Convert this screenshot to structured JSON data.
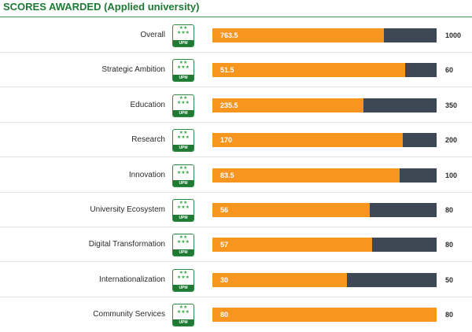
{
  "header": {
    "title": "SCORES AWARDED (Applied university)"
  },
  "badge": {
    "stars": "★★\n★★★",
    "brand": "UPM"
  },
  "colors": {
    "accent": "#f7961f",
    "track": "#3e4754",
    "brand": "#1f7a34"
  },
  "chart_data": {
    "type": "bar",
    "orientation": "horizontal",
    "title": "SCORES AWARDED (Applied university)",
    "categories": [
      "Overall",
      "Strategic Ambition",
      "Education",
      "Research",
      "Innovation",
      "University Ecosystem",
      "Digital Transformation",
      "Internationalization",
      "Community Services"
    ],
    "values": [
      763.5,
      51.5,
      235.5,
      170,
      83.5,
      56,
      57,
      30,
      80
    ],
    "value_labels": [
      "763.5",
      "51.5",
      "235.5",
      "170",
      "83.5",
      "56",
      "57",
      "30",
      "80"
    ],
    "max_values": [
      1000,
      60,
      350,
      200,
      100,
      80,
      80,
      50,
      80
    ],
    "max_labels": [
      "1000",
      "60",
      "350",
      "200",
      "100",
      "80",
      "80",
      "50",
      "80"
    ]
  }
}
